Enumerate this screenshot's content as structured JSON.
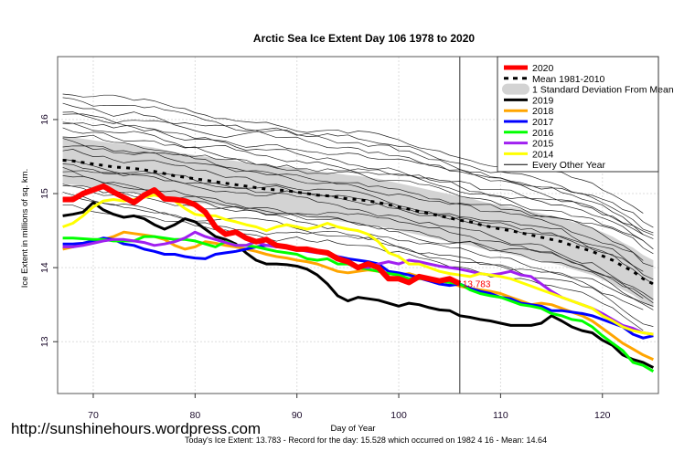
{
  "chart_data": {
    "type": "line",
    "title": "Arctic Sea Ice Extent Day 106 1978 to 2020",
    "xlabel": "Day of Year",
    "ylabel": "Ice Extent in millions of sq. km.",
    "xlim": [
      66.5,
      125.5
    ],
    "ylim": [
      12.3,
      16.85
    ],
    "x_ticks": [
      70,
      80,
      90,
      100,
      110,
      120
    ],
    "y_ticks": [
      13,
      14,
      15,
      16
    ],
    "grid": true,
    "current_day_marker": 106,
    "annotation": {
      "text": "13.783",
      "x": 106,
      "y": 13.783,
      "color": "#ff0000"
    },
    "legend_position": "top-right",
    "legend": [
      {
        "label": "2020",
        "color": "#ff0000",
        "style": "thick"
      },
      {
        "label": "Mean 1981-2010",
        "color": "#000000",
        "style": "dashed"
      },
      {
        "label": "1 Standard Deviation From Mean",
        "color": "#d3d3d3",
        "style": "band"
      },
      {
        "label": "2019",
        "color": "#000000",
        "style": "solid"
      },
      {
        "label": "2018",
        "color": "#ffa500",
        "style": "solid"
      },
      {
        "label": "2017",
        "color": "#0000ff",
        "style": "solid"
      },
      {
        "label": "2016",
        "color": "#00ff00",
        "style": "solid"
      },
      {
        "label": "2015",
        "color": "#a020f0",
        "style": "solid"
      },
      {
        "label": "2014",
        "color": "#ffff00",
        "style": "solid"
      },
      {
        "label": "Every Other Year",
        "color": "#000000",
        "style": "thin"
      }
    ],
    "x_start": 67,
    "mean": [
      15.45,
      15.44,
      15.42,
      15.4,
      15.38,
      15.36,
      15.35,
      15.34,
      15.32,
      15.3,
      15.27,
      15.24,
      15.22,
      15.2,
      15.18,
      15.16,
      15.14,
      15.12,
      15.1,
      15.08,
      15.06,
      15.05,
      15.04,
      15.02,
      15.0,
      14.98,
      14.97,
      14.95,
      14.93,
      14.92,
      14.9,
      14.88,
      14.85,
      14.82,
      14.79,
      14.76,
      14.73,
      14.7,
      14.67,
      14.64,
      14.62,
      14.58,
      14.55,
      14.52,
      14.5,
      14.47,
      14.44,
      14.41,
      14.38,
      14.35,
      14.3,
      14.26,
      14.22,
      14.16,
      14.1,
      14.02,
      13.95,
      13.85,
      13.78
    ],
    "std_dev": 0.32,
    "series": [
      {
        "name": "2020",
        "color": "#ff0000",
        "values": [
          14.92,
          14.92,
          15.0,
          15.05,
          15.1,
          15.02,
          14.95,
          14.88,
          14.98,
          15.05,
          14.93,
          14.92,
          14.9,
          14.85,
          14.75,
          14.55,
          14.45,
          14.48,
          14.4,
          14.35,
          14.38,
          14.3,
          14.28,
          14.25,
          14.25,
          14.22,
          14.2,
          14.12,
          14.08,
          14.0,
          14.05,
          14.0,
          13.85,
          13.85,
          13.8,
          13.88,
          13.85,
          13.82,
          13.85,
          13.783
        ]
      },
      {
        "name": "2019",
        "color": "#000000",
        "values": [
          14.7,
          14.72,
          14.75,
          14.88,
          14.78,
          14.72,
          14.68,
          14.7,
          14.66,
          14.58,
          14.52,
          14.58,
          14.66,
          14.62,
          14.52,
          14.42,
          14.38,
          14.32,
          14.2,
          14.1,
          14.05,
          14.05,
          14.04,
          14.02,
          13.98,
          13.9,
          13.78,
          13.62,
          13.55,
          13.6,
          13.58,
          13.56,
          13.52,
          13.48,
          13.52,
          13.5,
          13.46,
          13.43,
          13.42,
          13.35,
          13.33,
          13.3,
          13.28,
          13.25,
          13.22,
          13.22,
          13.22,
          13.25,
          13.35,
          13.28,
          13.2,
          13.15,
          13.12,
          13.02,
          12.95,
          12.82,
          12.76,
          12.72,
          12.65
        ]
      },
      {
        "name": "2018",
        "color": "#ffa500",
        "values": [
          14.25,
          14.28,
          14.32,
          14.35,
          14.38,
          14.42,
          14.48,
          14.46,
          14.44,
          14.42,
          14.38,
          14.3,
          14.25,
          14.28,
          14.35,
          14.33,
          14.3,
          14.28,
          14.25,
          14.22,
          14.18,
          14.15,
          14.13,
          14.1,
          14.08,
          14.05,
          14.0,
          13.95,
          13.93,
          13.95,
          13.97,
          13.95,
          13.92,
          13.9,
          13.92,
          13.88,
          13.85,
          13.82,
          13.8,
          13.75,
          13.72,
          13.7,
          13.68,
          13.65,
          13.6,
          13.55,
          13.5,
          13.52,
          13.5,
          13.45,
          13.4,
          13.35,
          13.28,
          13.18,
          13.08,
          12.98,
          12.9,
          12.82,
          12.76
        ]
      },
      {
        "name": "2017",
        "color": "#0000ff",
        "values": [
          14.32,
          14.32,
          14.33,
          14.36,
          14.4,
          14.38,
          14.32,
          14.3,
          14.25,
          14.22,
          14.18,
          14.18,
          14.15,
          14.13,
          14.12,
          14.18,
          14.2,
          14.22,
          14.25,
          14.28,
          14.3,
          14.3,
          14.28,
          14.25,
          14.25,
          14.22,
          14.2,
          14.15,
          14.12,
          14.1,
          14.08,
          14.05,
          13.95,
          13.93,
          13.9,
          13.86,
          13.82,
          13.78,
          13.76,
          13.78,
          13.72,
          13.68,
          13.65,
          13.6,
          13.58,
          13.52,
          13.5,
          13.48,
          13.42,
          13.42,
          13.4,
          13.38,
          13.35,
          13.3,
          13.25,
          13.2,
          13.1,
          13.05,
          13.08
        ]
      },
      {
        "name": "2016",
        "color": "#00ff00",
        "values": [
          14.4,
          14.4,
          14.39,
          14.38,
          14.38,
          14.36,
          14.36,
          14.36,
          14.42,
          14.42,
          14.4,
          14.38,
          14.38,
          14.36,
          14.32,
          14.28,
          14.35,
          14.3,
          14.3,
          14.28,
          14.25,
          14.22,
          14.2,
          14.18,
          14.12,
          14.1,
          14.12,
          14.05,
          14.05,
          14.0,
          13.98,
          13.95,
          13.92,
          13.9,
          13.85,
          13.85,
          13.85,
          13.82,
          13.8,
          13.78,
          13.7,
          13.65,
          13.62,
          13.6,
          13.55,
          13.5,
          13.48,
          13.45,
          13.38,
          13.35,
          13.3,
          13.28,
          13.2,
          13.08,
          12.98,
          12.88,
          12.72,
          12.68,
          12.6
        ]
      },
      {
        "name": "2015",
        "color": "#a020f0",
        "values": [
          14.28,
          14.28,
          14.3,
          14.33,
          14.36,
          14.38,
          14.38,
          14.36,
          14.34,
          14.3,
          14.32,
          14.35,
          14.4,
          14.48,
          14.42,
          14.38,
          14.34,
          14.3,
          14.3,
          14.35,
          14.3,
          14.28,
          14.28,
          14.25,
          14.22,
          14.2,
          14.18,
          14.15,
          14.08,
          14.02,
          14.0,
          14.05,
          14.08,
          14.05,
          14.1,
          14.08,
          14.05,
          14.02,
          14.0,
          13.98,
          13.95,
          13.92,
          13.9,
          13.92,
          13.95,
          13.9,
          13.88,
          13.78,
          13.68,
          13.6,
          13.55,
          13.5,
          13.45,
          13.38,
          13.3,
          13.22,
          13.18,
          13.12,
          13.1
        ]
      },
      {
        "name": "2014",
        "color": "#ffff00",
        "values": [
          14.55,
          14.6,
          14.7,
          14.82,
          14.9,
          14.92,
          14.9,
          14.92,
          14.95,
          14.98,
          14.95,
          14.9,
          14.8,
          14.72,
          14.7,
          14.7,
          14.65,
          14.62,
          14.58,
          14.55,
          14.5,
          14.55,
          14.58,
          14.55,
          14.52,
          14.55,
          14.6,
          14.55,
          14.52,
          14.5,
          14.45,
          14.35,
          14.2,
          14.15,
          14.05,
          14.05,
          14.0,
          13.95,
          13.92,
          13.9,
          13.88,
          13.92,
          13.9,
          13.88,
          13.85,
          13.8,
          13.75,
          13.7,
          13.65,
          13.6,
          13.55,
          13.5,
          13.45,
          13.35,
          13.28,
          13.2,
          13.15,
          13.12,
          13.1
        ]
      }
    ]
  },
  "footer": {
    "watermark": "http://sunshinehours.wordpress.com",
    "summary": "Today's Ice Extent: 13.783  - Record for the day: 15.528 which occurred on 1982 4 16  - Mean: 14.64"
  }
}
